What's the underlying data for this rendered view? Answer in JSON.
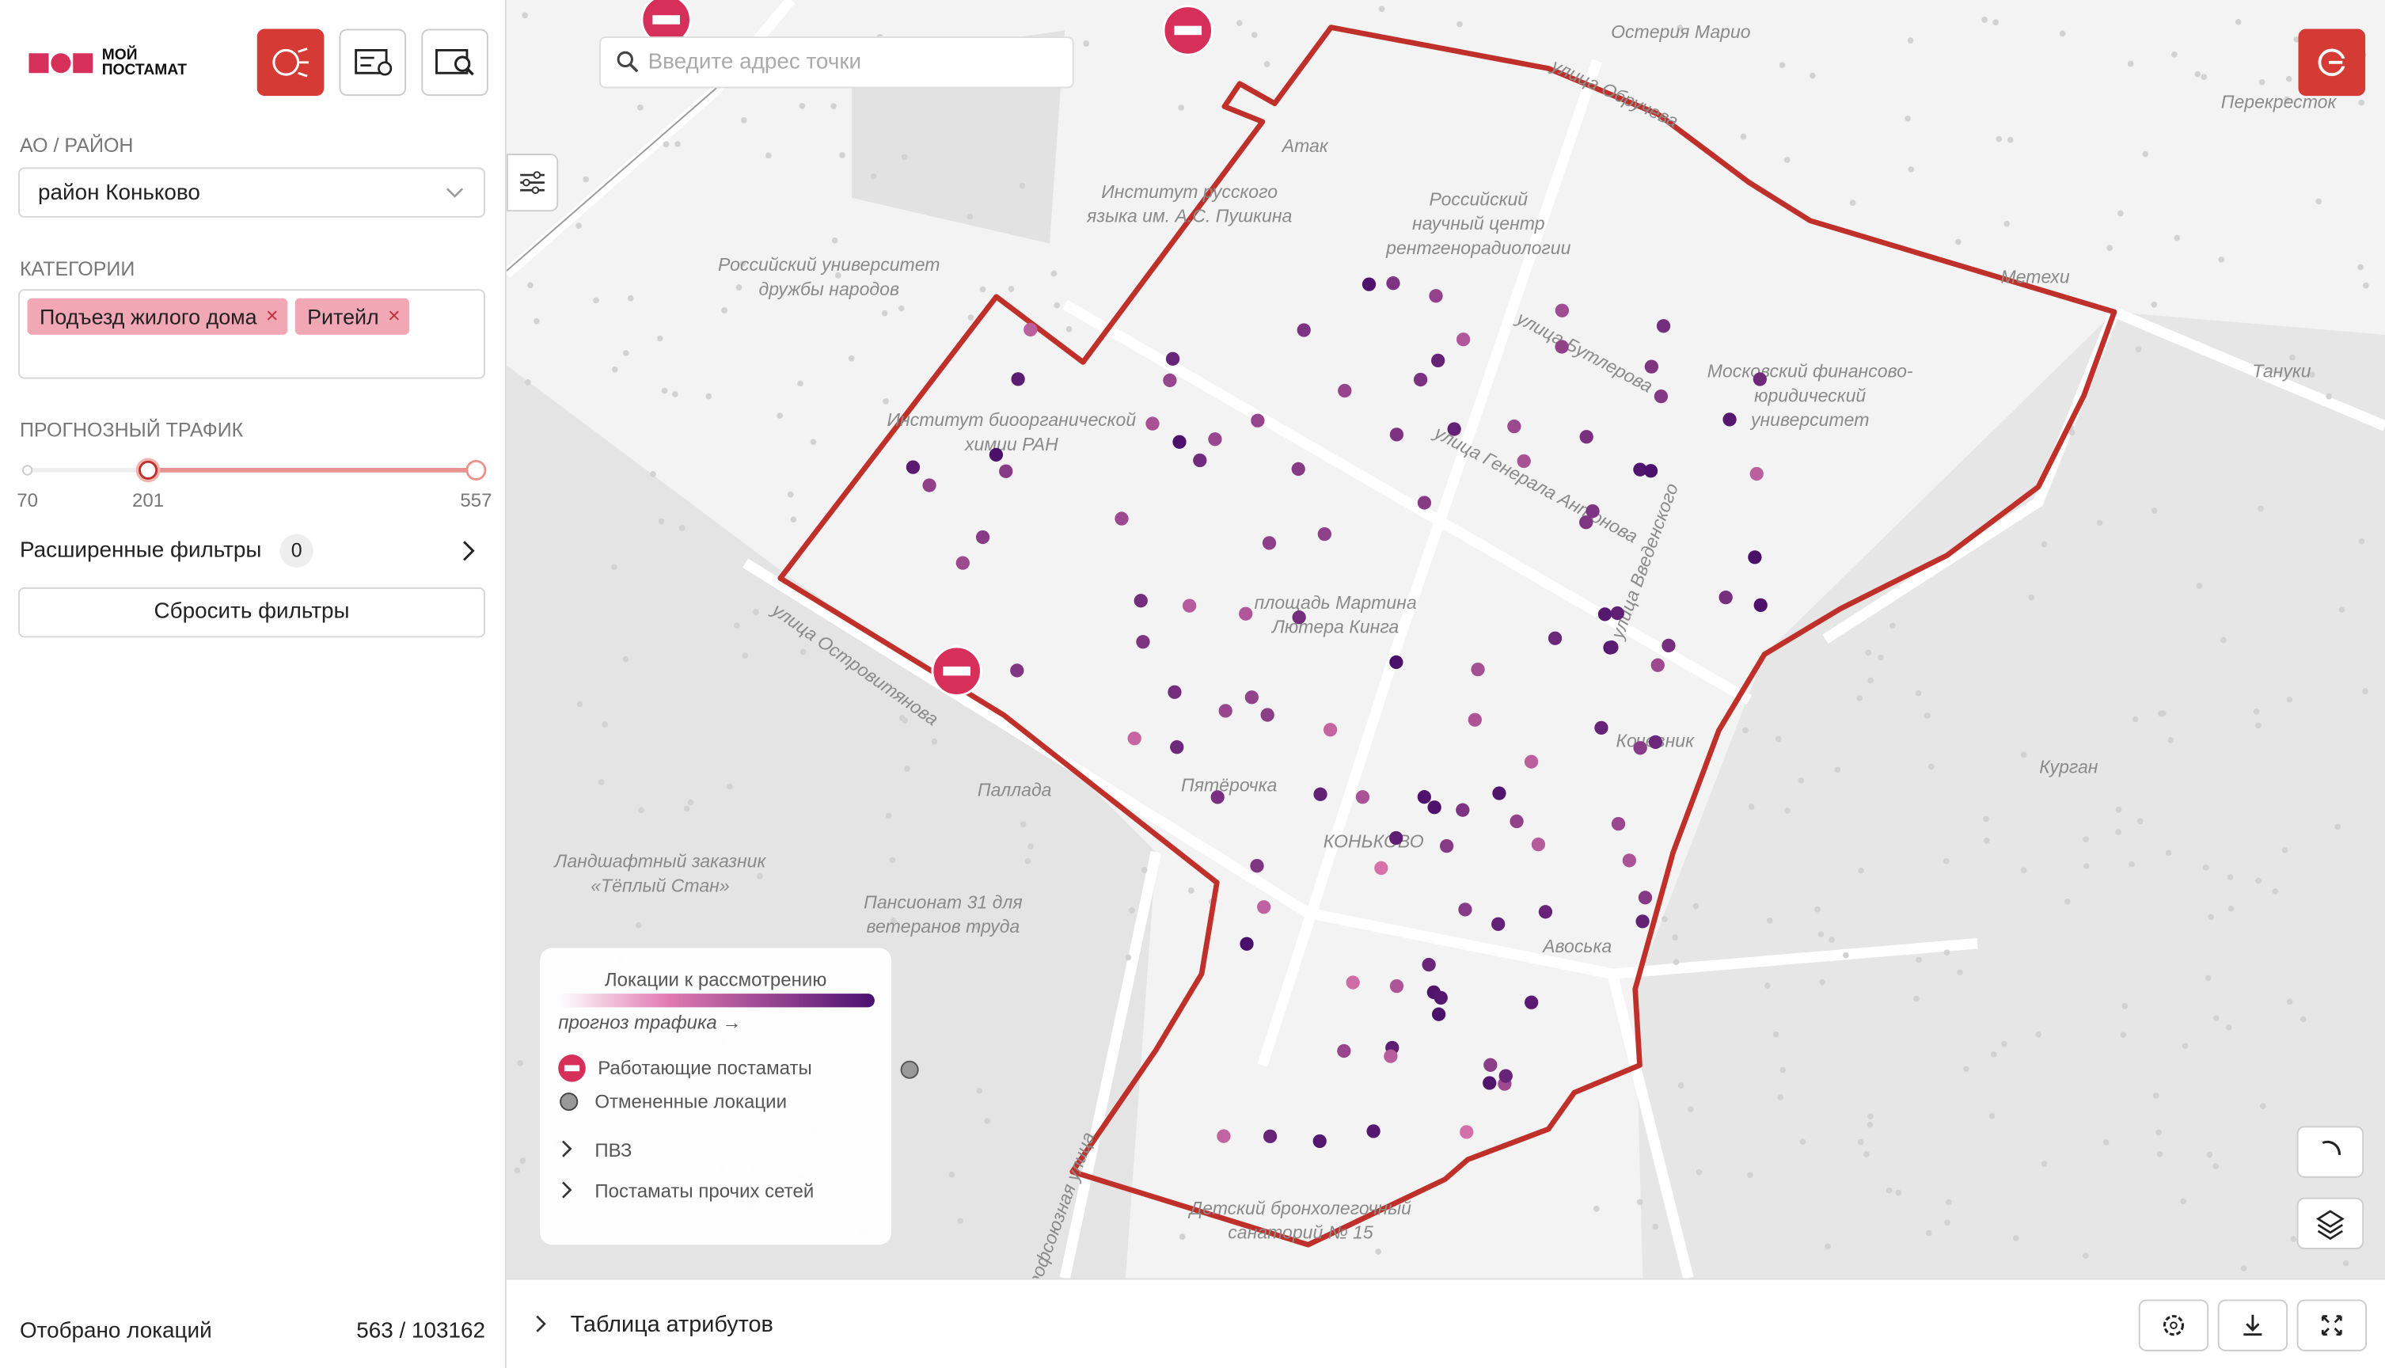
{
  "header": {
    "logo_text": [
      "МОЙ",
      "ПОСТАМАТ"
    ]
  },
  "sidebar": {
    "district_label": "АО / РАЙОН",
    "district_value": "район Коньково",
    "categories_label": "КАТЕГОРИИ",
    "categories": [
      "Подъезд жилого дома",
      "Ритейл"
    ],
    "traffic_label": "ПРОГНОЗНЫЙ ТРАФИК",
    "traffic_min": 70,
    "traffic_selected": 201,
    "traffic_max": 557,
    "advanced_filters": "Расширенные фильтры",
    "advanced_filters_count": 0,
    "reset_button": "Сбросить фильтры",
    "selected_label": "Отобрано локаций",
    "selected_count": "563 / 103162"
  },
  "map": {
    "search_placeholder": "Введите адрес точки",
    "labels": [
      [
        "Остерия Марио"
      ],
      [
        "Атак"
      ],
      [
        "Институт русского",
        "языка им. А.С. Пушкина"
      ],
      [
        "Российский",
        "научный центр",
        "рентгенорадиологии"
      ],
      [
        "Российский университет",
        "дружбы народов"
      ],
      [
        "улица Бутлерова"
      ],
      [
        "Московский финансово-",
        "юридический",
        "университет"
      ],
      [
        "Институт биоорганической",
        "химии РАН"
      ],
      [
        "улица Генерала Антонова"
      ],
      [
        "улица Введенского"
      ],
      [
        "площадь Мартина",
        "Лютера Кинга"
      ],
      [
        "Метехи"
      ],
      [
        "Перекресток"
      ],
      [
        "Тануки"
      ],
      [
        "Кочевник"
      ],
      [
        "Курган"
      ],
      [
        "Паллада"
      ],
      [
        "Пятёрочка"
      ],
      [
        "КОНЬКОВО"
      ],
      [
        "Ландшафтный заказник",
        "«Тёплый Стан»"
      ],
      [
        "Пансионат 31 для",
        "ветеранов труда"
      ],
      [
        "Авоська"
      ],
      [
        "улица Островитянова"
      ],
      [
        "улица Обручева"
      ],
      [
        "Детский бронхолегочный",
        "санаторий № 15"
      ],
      [
        "Профсоюзная улица"
      ]
    ],
    "legend": {
      "title": "Локации к рассмотрению",
      "gradient_caption": "прогноз трафика →",
      "items": [
        "Работающие постаматы",
        "Отмененные локации",
        "ПВЗ",
        "Постаматы прочих сетей"
      ]
    }
  },
  "bottom_bar": {
    "title": "Таблица атрибутов"
  }
}
